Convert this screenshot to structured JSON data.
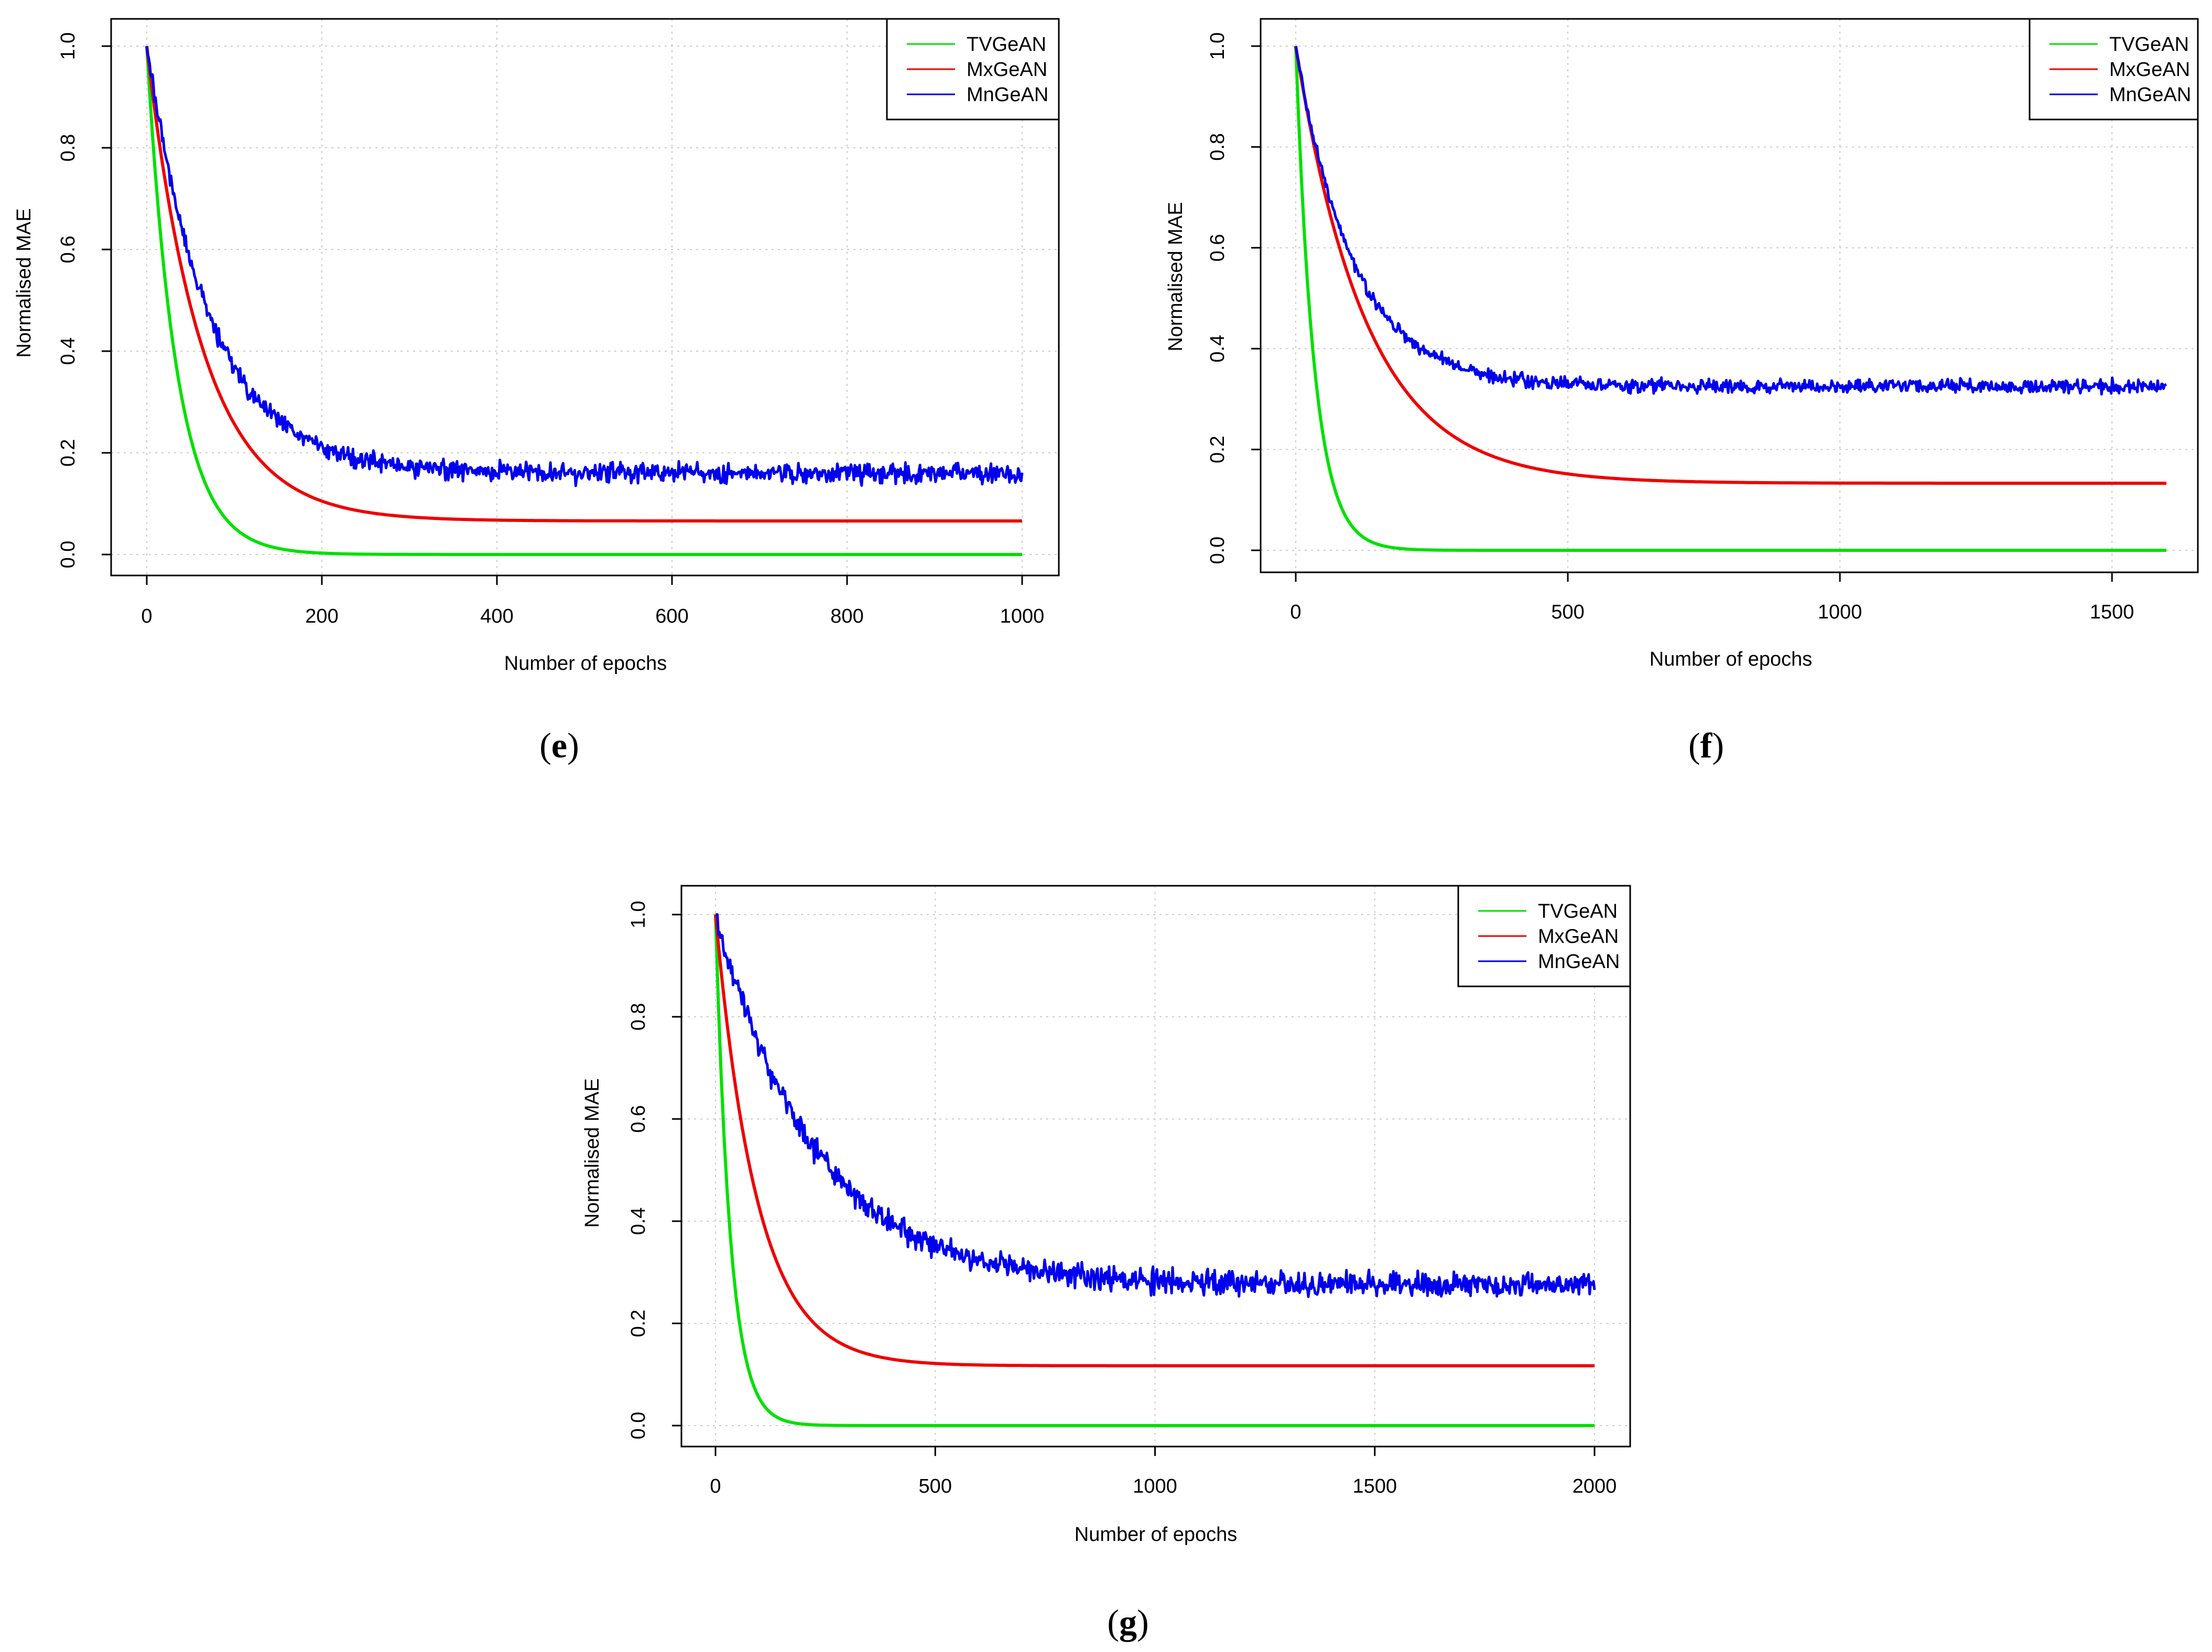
{
  "colors": {
    "TVGeAN": "#00e000",
    "MxGeAN": "#ee0000",
    "MnGeAN": "#0000ee",
    "grid": "#cccccc",
    "frame": "#000000"
  },
  "chart_data": [
    {
      "panel": "e",
      "type": "line",
      "xlabel": "Number of epochs",
      "ylabel": "Normalised MAE",
      "xlim": [
        0,
        1000
      ],
      "ylim": [
        0,
        1
      ],
      "xticks": [
        0,
        200,
        400,
        600,
        800,
        1000
      ],
      "yticks": [
        "0.0",
        "0.2",
        "0.4",
        "0.6",
        "0.8",
        "1.0"
      ],
      "grid": true,
      "legend_position": "top-right",
      "series": [
        {
          "name": "TVGeAN",
          "start": 1.0,
          "plateau": 0.0,
          "tau": 34,
          "noise": 0
        },
        {
          "name": "MxGeAN",
          "start": 1.0,
          "plateau": 0.066,
          "tau": 63,
          "noise": 0
        },
        {
          "name": "MnGeAN",
          "start": 1.0,
          "plateau": 0.16,
          "tau": 72,
          "noise": 0.014
        }
      ]
    },
    {
      "panel": "f",
      "type": "line",
      "xlabel": "Number of epochs",
      "ylabel": "Normalised MAE",
      "xlim": [
        0,
        1600
      ],
      "ylim": [
        0,
        1
      ],
      "xticks": [
        0,
        500,
        1000,
        1500
      ],
      "yticks": [
        "0.0",
        "0.2",
        "0.4",
        "0.6",
        "0.8",
        "1.0"
      ],
      "grid": true,
      "legend_position": "top-right",
      "series": [
        {
          "name": "TVGeAN",
          "start": 1.0,
          "plateau": 0.0,
          "tau": 34,
          "noise": 0
        },
        {
          "name": "MxGeAN",
          "start": 1.0,
          "plateau": 0.133,
          "tau": 130,
          "noise": 0
        },
        {
          "name": "MnGeAN",
          "start": 1.0,
          "plateau": 0.325,
          "tau": 105,
          "noise": 0.01
        }
      ]
    },
    {
      "panel": "g",
      "type": "line",
      "xlabel": "Number of epochs",
      "ylabel": "Normalised MAE",
      "xlim": [
        0,
        2000
      ],
      "ylim": [
        0,
        1
      ],
      "xticks": [
        0,
        500,
        1000,
        1500,
        2000
      ],
      "yticks": [
        "0.0",
        "0.2",
        "0.4",
        "0.6",
        "0.8",
        "1.0"
      ],
      "grid": true,
      "legend_position": "top-right",
      "series": [
        {
          "name": "TVGeAN",
          "start": 1.0,
          "plateau": 0.0,
          "tau": 34,
          "noise": 0
        },
        {
          "name": "MxGeAN",
          "start": 1.0,
          "plateau": 0.117,
          "tau": 95,
          "noise": 0
        },
        {
          "name": "MnGeAN",
          "start": 1.0,
          "plateau": 0.275,
          "tau": 225,
          "noise": 0.017
        }
      ]
    }
  ]
}
